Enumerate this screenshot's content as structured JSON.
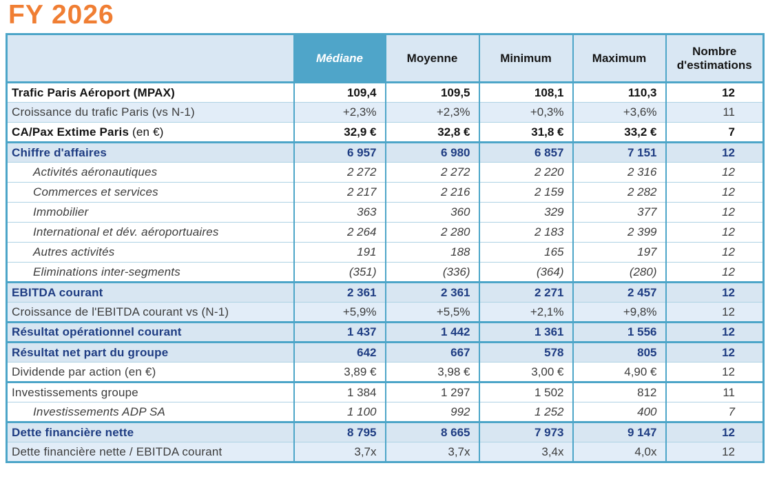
{
  "title": "FY 2026",
  "colors": {
    "title_orange": "#F07E33",
    "teal_border": "#4CA5C8",
    "mediane_header_bg": "#4FA5C9",
    "header_bg": "#D9E7F3",
    "light_band_bg": "#E2EDF8",
    "section_band_bg": "#D8E6F2",
    "navy_text": "#1E3C82",
    "thin_border": "#ADD2E4"
  },
  "table": {
    "columns": [
      "Médiane",
      "Moyenne",
      "Minimum",
      "Maximum",
      "Nombre d'estimations"
    ],
    "rows": [
      {
        "label": "Trafic Paris Aéroport (MPAX)",
        "style": "bold",
        "band": "white",
        "thick_top": false,
        "values": [
          "109,4",
          "109,5",
          "108,1",
          "110,3",
          "12"
        ]
      },
      {
        "label": "Croissance du trafic Paris (vs N-1)",
        "style": "plain",
        "band": "light",
        "thick_top": false,
        "values": [
          "+2,3%",
          "+2,3%",
          "+0,3%",
          "+3,6%",
          "11"
        ]
      },
      {
        "label": "CA/Pax Extime Paris",
        "label_suffix": " (en €)",
        "style": "bold",
        "band": "white",
        "thick_top": false,
        "values": [
          "32,9 €",
          "32,8 €",
          "31,8 €",
          "33,2 €",
          "7"
        ]
      },
      {
        "label": "Chiffre d'affaires",
        "style": "navy",
        "band": "section",
        "thick_top": true,
        "values": [
          "6 957",
          "6 980",
          "6 857",
          "7 151",
          "12"
        ]
      },
      {
        "label": "Activités aéronautiques",
        "style": "italic",
        "band": "white",
        "thick_top": false,
        "values": [
          "2 272",
          "2 272",
          "2 220",
          "2 316",
          "12"
        ]
      },
      {
        "label": "Commerces et services",
        "style": "italic",
        "band": "white",
        "thick_top": false,
        "values": [
          "2 217",
          "2 216",
          "2 159",
          "2 282",
          "12"
        ]
      },
      {
        "label": "Immobilier",
        "style": "italic",
        "band": "white",
        "thick_top": false,
        "values": [
          "363",
          "360",
          "329",
          "377",
          "12"
        ]
      },
      {
        "label": "International et dév. aéroportuaires",
        "style": "italic",
        "band": "white",
        "thick_top": false,
        "values": [
          "2 264",
          "2 280",
          "2 183",
          "2 399",
          "12"
        ]
      },
      {
        "label": "Autres activités",
        "style": "italic",
        "band": "white",
        "thick_top": false,
        "values": [
          "191",
          "188",
          "165",
          "197",
          "12"
        ]
      },
      {
        "label": "Eliminations inter-segments",
        "style": "italic",
        "band": "white",
        "thick_top": false,
        "values": [
          "(351)",
          "(336)",
          "(364)",
          "(280)",
          "12"
        ]
      },
      {
        "label": "EBITDA courant",
        "style": "navy",
        "band": "section",
        "thick_top": true,
        "values": [
          "2 361",
          "2 361",
          "2 271",
          "2 457",
          "12"
        ]
      },
      {
        "label": "Croissance de l'EBITDA courant vs (N-1)",
        "style": "plain",
        "band": "light",
        "thick_top": false,
        "values": [
          "+5,9%",
          "+5,5%",
          "+2,1%",
          "+9,8%",
          "12"
        ]
      },
      {
        "label": "Résultat opérationnel courant",
        "style": "navy",
        "band": "section",
        "thick_top": true,
        "values": [
          "1 437",
          "1 442",
          "1 361",
          "1 556",
          "12"
        ]
      },
      {
        "label": "Résultat net part du groupe",
        "style": "navy",
        "band": "section",
        "thick_top": true,
        "values": [
          "642",
          "667",
          "578",
          "805",
          "12"
        ]
      },
      {
        "label": "Dividende par action (en €)",
        "style": "plain",
        "band": "white",
        "thick_top": false,
        "values": [
          "3,89 €",
          "3,98 €",
          "3,00 €",
          "4,90 €",
          "12"
        ]
      },
      {
        "label": "Investissements groupe",
        "style": "plain",
        "band": "white",
        "thick_top": true,
        "values": [
          "1 384",
          "1 297",
          "1 502",
          "812",
          "11"
        ]
      },
      {
        "label": "Investissements ADP SA",
        "style": "italic",
        "band": "white",
        "thick_top": false,
        "values": [
          "1 100",
          "992",
          "1 252",
          "400",
          "7"
        ]
      },
      {
        "label": "Dette financière nette",
        "style": "navy",
        "band": "section",
        "thick_top": true,
        "values": [
          "8 795",
          "8 665",
          "7 973",
          "9 147",
          "12"
        ]
      },
      {
        "label": "Dette financière nette / EBITDA courant",
        "style": "plain",
        "band": "light",
        "thick_top": false,
        "values": [
          "3,7x",
          "3,7x",
          "3,4x",
          "4,0x",
          "12"
        ]
      }
    ]
  }
}
